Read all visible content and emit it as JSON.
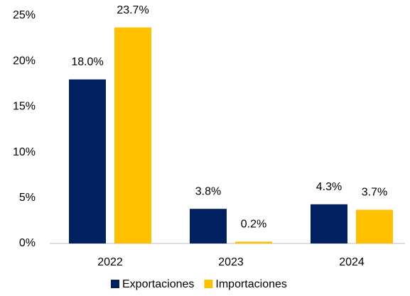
{
  "chart_data": {
    "type": "bar",
    "categories": [
      "2022",
      "2023",
      "2024"
    ],
    "series": [
      {
        "name": "Exportaciones",
        "color": "#002060",
        "values": [
          18.0,
          3.8,
          4.3
        ],
        "value_labels": [
          "18.0%",
          "3.8%",
          "4.3%"
        ]
      },
      {
        "name": "Importaciones",
        "color": "#FFC000",
        "values": [
          23.7,
          0.2,
          3.7
        ],
        "value_labels": [
          "23.7%",
          "0.2%",
          "3.7%"
        ]
      }
    ],
    "ylim": [
      0,
      25
    ],
    "yticks": [
      {
        "value": 0,
        "label": "0%"
      },
      {
        "value": 5,
        "label": "5%"
      },
      {
        "value": 10,
        "label": "10%"
      },
      {
        "value": 15,
        "label": "15%"
      },
      {
        "value": 20,
        "label": "20%"
      },
      {
        "value": 25,
        "label": "25%"
      }
    ],
    "grid": false,
    "legend": "bottom"
  }
}
